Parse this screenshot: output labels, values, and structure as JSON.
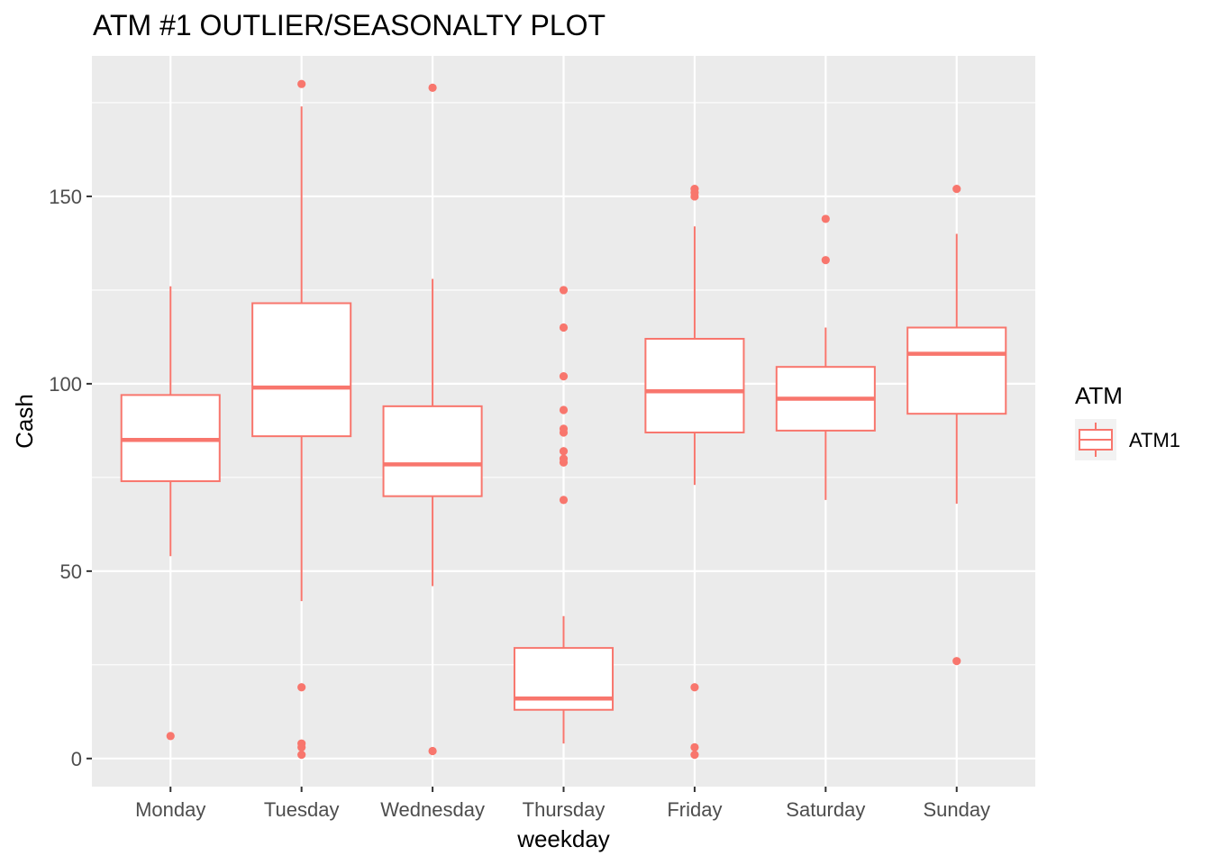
{
  "chart_data": {
    "type": "boxplot",
    "title": "ATM #1 OUTLIER/SEASONALTY PLOT",
    "xlabel": "weekday",
    "ylabel": "Cash",
    "ylim": [
      -7.5,
      187.5
    ],
    "yticks": [
      0,
      50,
      100,
      150
    ],
    "grid": true,
    "legend": {
      "title": "ATM",
      "entries": [
        "ATM1"
      ],
      "placement": "right"
    },
    "series_color": "#F8766D",
    "panel_bg": "#EBEBEB",
    "categories": [
      "Monday",
      "Tuesday",
      "Wednesday",
      "Thursday",
      "Friday",
      "Saturday",
      "Sunday"
    ],
    "boxes": [
      {
        "day": "Monday",
        "whisker_low": 54,
        "q1": 74,
        "median": 85,
        "q3": 97,
        "whisker_high": 126,
        "outliers": [
          6
        ]
      },
      {
        "day": "Tuesday",
        "whisker_low": 42,
        "q1": 86,
        "median": 99,
        "q3": 121.5,
        "whisker_high": 174,
        "outliers": [
          180,
          19,
          4,
          3,
          1
        ]
      },
      {
        "day": "Wednesday",
        "whisker_low": 46,
        "q1": 70,
        "median": 78.5,
        "q3": 94,
        "whisker_high": 128,
        "outliers": [
          179,
          2
        ]
      },
      {
        "day": "Thursday",
        "whisker_low": 4,
        "q1": 13,
        "median": 16,
        "q3": 29.5,
        "whisker_high": 38,
        "outliers": [
          125,
          115,
          102,
          93,
          88,
          87,
          82,
          80,
          79,
          69
        ]
      },
      {
        "day": "Friday",
        "whisker_low": 73,
        "q1": 87,
        "median": 98,
        "q3": 112,
        "whisker_high": 142,
        "outliers": [
          152,
          151,
          150,
          19,
          3,
          1
        ]
      },
      {
        "day": "Saturday",
        "whisker_low": 69,
        "q1": 87.5,
        "median": 96,
        "q3": 104.5,
        "whisker_high": 115,
        "outliers": [
          144,
          133
        ]
      },
      {
        "day": "Sunday",
        "whisker_low": 68,
        "q1": 92,
        "median": 108,
        "q3": 115,
        "whisker_high": 140,
        "outliers": [
          152,
          26
        ]
      }
    ]
  }
}
